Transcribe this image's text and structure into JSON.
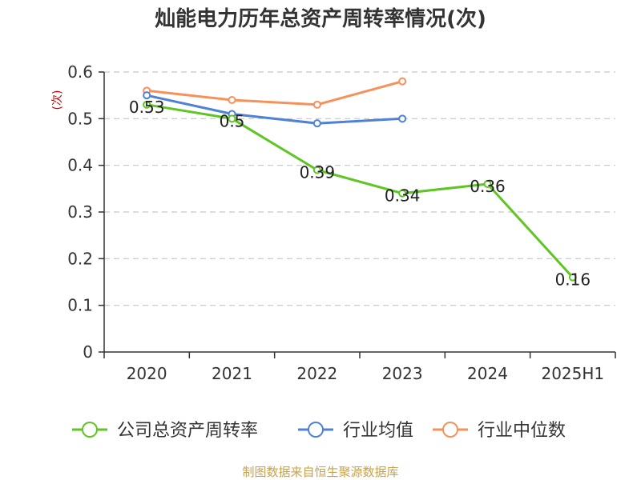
{
  "chart_data": {
    "type": "line",
    "title": "灿能电力历年总资产周转率情况(次)",
    "ylabel": "(次)",
    "xlabel": "",
    "categories": [
      "2020",
      "2021",
      "2022",
      "2023",
      "2024",
      "2025H1"
    ],
    "ylim": [
      0,
      0.6
    ],
    "yticks": [
      0,
      0.1,
      0.2,
      0.3,
      0.4,
      0.5,
      0.6
    ],
    "ytick_labels": [
      "0",
      "0.1",
      "0.2",
      "0.3",
      "0.4",
      "0.5",
      "0.6"
    ],
    "grid": "horizontal dashed",
    "legend_position": "bottom",
    "series": [
      {
        "name": "公司总资产周转率",
        "color": "#5ec524",
        "values": [
          0.53,
          0.5,
          0.39,
          0.34,
          0.36,
          0.16
        ],
        "labels": [
          "0.53",
          "0.5",
          "0.39",
          "0.34",
          "0.36",
          "0.16"
        ]
      },
      {
        "name": "行业均值",
        "color": "#4f81d6",
        "values": [
          0.55,
          0.51,
          0.49,
          0.5,
          null,
          null
        ]
      },
      {
        "name": "行业中位数",
        "color": "#f7915a",
        "values": [
          0.56,
          0.54,
          0.53,
          0.58,
          null,
          null
        ]
      }
    ],
    "source": "制图数据来自恒生聚源数据库"
  }
}
